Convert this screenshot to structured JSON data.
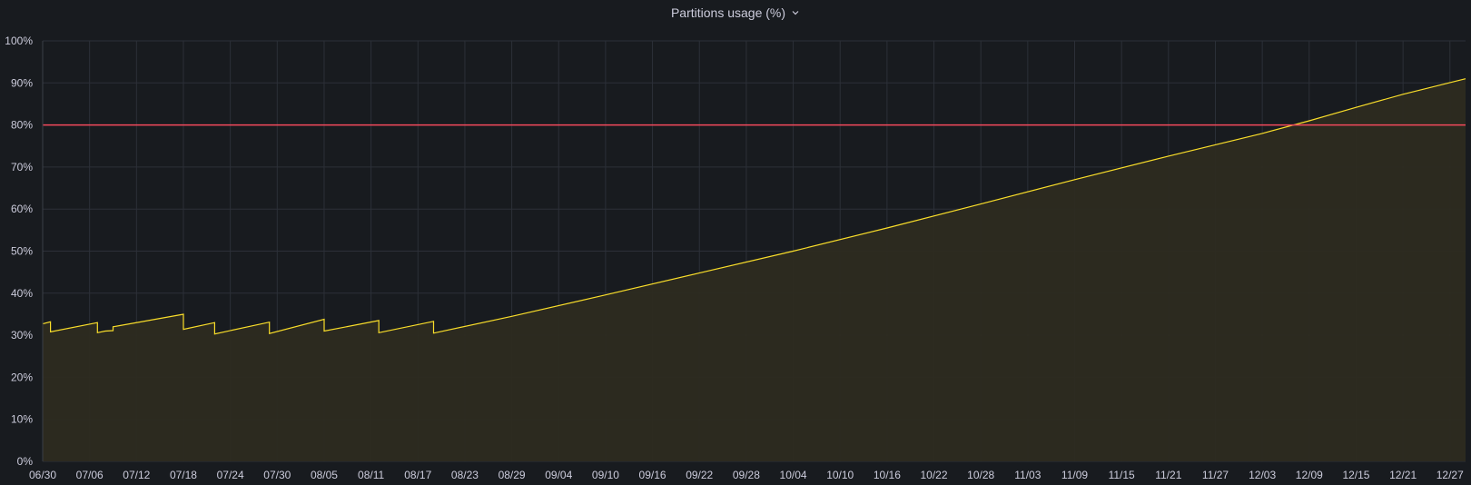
{
  "panel": {
    "title": "Partitions usage (%)",
    "menu_icon": "chevron-down-icon"
  },
  "chart_data": {
    "type": "area",
    "title": "Partitions usage (%)",
    "xlabel": "",
    "ylabel": "",
    "x_axis": {
      "kind": "date",
      "range": [
        "06/30",
        "12/29"
      ],
      "ticks": [
        "06/30",
        "07/06",
        "07/12",
        "07/18",
        "07/24",
        "07/30",
        "08/05",
        "08/11",
        "08/17",
        "08/23",
        "08/29",
        "09/04",
        "09/10",
        "09/16",
        "09/22",
        "09/28",
        "10/04",
        "10/10",
        "10/16",
        "10/22",
        "10/28",
        "11/03",
        "11/09",
        "11/15",
        "11/21",
        "11/27",
        "12/03",
        "12/09",
        "12/15",
        "12/21",
        "12/27"
      ]
    },
    "y_axis": {
      "range": [
        0,
        100
      ],
      "unit": "%",
      "ticks": [
        "0%",
        "10%",
        "20%",
        "30%",
        "40%",
        "50%",
        "60%",
        "70%",
        "80%",
        "90%",
        "100%"
      ]
    },
    "grid": true,
    "legend": "none",
    "colors": {
      "series": "#fade2a",
      "threshold": "#f2495c",
      "fill": "#2d2b20",
      "grid": "#2c3038",
      "background": "#181b1f"
    },
    "thresholds": [
      {
        "value": 80,
        "color": "#f2495c"
      }
    ],
    "series": [
      {
        "color": "#fade2a",
        "points": [
          [
            "06/30",
            32.7
          ],
          [
            "07/01",
            33.2
          ],
          [
            "07/01",
            30.8
          ],
          [
            "07/07",
            33.0
          ],
          [
            "07/07",
            30.6
          ],
          [
            "07/08",
            31.0
          ],
          [
            "07/09",
            31.1
          ],
          [
            "07/09",
            32.0
          ],
          [
            "07/18",
            35.0
          ],
          [
            "07/18",
            31.4
          ],
          [
            "07/22",
            33.0
          ],
          [
            "07/22",
            30.3
          ],
          [
            "07/29",
            33.1
          ],
          [
            "07/29",
            30.4
          ],
          [
            "08/05",
            33.8
          ],
          [
            "08/05",
            31.0
          ],
          [
            "08/12",
            33.5
          ],
          [
            "08/12",
            30.6
          ],
          [
            "08/19",
            33.3
          ],
          [
            "08/19",
            30.5
          ],
          [
            "08/29",
            34.5
          ],
          [
            "09/10",
            39.6
          ],
          [
            "09/22",
            44.8
          ],
          [
            "10/04",
            50.0
          ],
          [
            "10/16",
            55.5
          ],
          [
            "10/28",
            61.2
          ],
          [
            "11/09",
            67.0
          ],
          [
            "11/21",
            72.6
          ],
          [
            "12/03",
            78.0
          ],
          [
            "12/09",
            81.0
          ],
          [
            "12/15",
            84.2
          ],
          [
            "12/21",
            87.3
          ],
          [
            "12/29",
            91.0
          ]
        ]
      }
    ]
  }
}
